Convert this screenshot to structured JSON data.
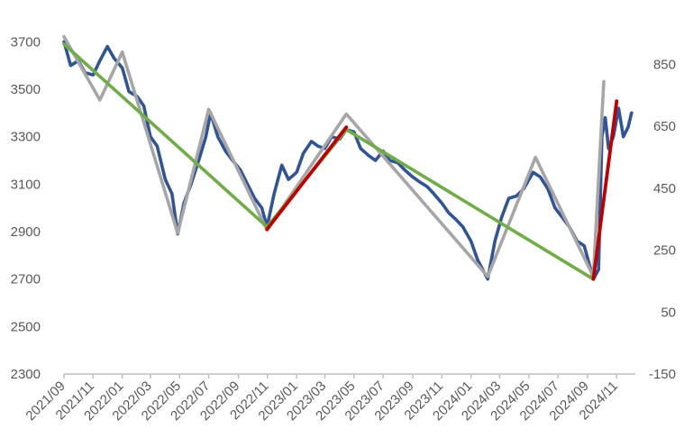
{
  "chart_data": {
    "type": "line",
    "title": "",
    "xlabel": "",
    "ylabel": "",
    "x_ticks": [
      "2021/09",
      "2021/11",
      "2022/01",
      "2022/03",
      "2022/05",
      "2022/07",
      "2022/09",
      "2022/11",
      "2023/01",
      "2023/03",
      "2023/05",
      "2023/07",
      "2023/09",
      "2023/11",
      "2024/01",
      "2024/03",
      "2024/05",
      "2024/07",
      "2024/09",
      "2024/11"
    ],
    "y_left": {
      "ticks": [
        2300,
        2500,
        2700,
        2900,
        3100,
        3300,
        3500,
        3700
      ],
      "ylim": [
        2300,
        3800
      ]
    },
    "y_right": {
      "ticks": [
        -150,
        50,
        250,
        450,
        650,
        850
      ],
      "ylim": [
        -150,
        1000
      ]
    },
    "grid": false,
    "legend": "none",
    "colors": {
      "index": "#2f5597",
      "trend_down": "#70ad47",
      "trend_up": "#c00000",
      "zigzag": "#a6a6a6"
    },
    "series": [
      {
        "axis": "left",
        "x": [
          "2021-09-01",
          "2021-09-15",
          "2021-10-01",
          "2021-10-15",
          "2021-11-01",
          "2021-11-15",
          "2021-12-01",
          "2021-12-15",
          "2022-01-01",
          "2022-01-15",
          "2022-02-01",
          "2022-02-15",
          "2022-03-01",
          "2022-03-15",
          "2022-04-01",
          "2022-04-15",
          "2022-04-27",
          "2022-05-10",
          "2022-05-25",
          "2022-06-10",
          "2022-06-25",
          "2022-07-05",
          "2022-07-20",
          "2022-08-05",
          "2022-08-20",
          "2022-09-05",
          "2022-09-20",
          "2022-10-05",
          "2022-10-20",
          "2022-10-31",
          "2022-11-15",
          "2022-12-01",
          "2022-12-15",
          "2023-01-01",
          "2023-01-15",
          "2023-02-01",
          "2023-02-15",
          "2023-03-01",
          "2023-03-15",
          "2023-04-01",
          "2023-04-15",
          "2023-05-01",
          "2023-05-15",
          "2023-06-01",
          "2023-06-15",
          "2023-07-01",
          "2023-07-15",
          "2023-08-01",
          "2023-08-15",
          "2023-09-01",
          "2023-09-15",
          "2023-10-01",
          "2023-10-15",
          "2023-11-01",
          "2023-11-15",
          "2023-12-01",
          "2023-12-15",
          "2024-01-01",
          "2024-01-15",
          "2024-02-05",
          "2024-02-20",
          "2024-03-05",
          "2024-03-20",
          "2024-04-05",
          "2024-04-20",
          "2024-05-10",
          "2024-05-25",
          "2024-06-10",
          "2024-06-25",
          "2024-07-10",
          "2024-07-25",
          "2024-08-10",
          "2024-08-25",
          "2024-09-13",
          "2024-09-24",
          "2024-10-01",
          "2024-10-08",
          "2024-10-15",
          "2024-10-25",
          "2024-11-05",
          "2024-11-15",
          "2024-11-25",
          "2024-12-02"
        ],
        "values": [
          3700,
          3600,
          3620,
          3570,
          3560,
          3620,
          3680,
          3630,
          3590,
          3490,
          3470,
          3430,
          3300,
          3260,
          3120,
          3060,
          2890,
          3020,
          3100,
          3200,
          3300,
          3400,
          3300,
          3240,
          3200,
          3160,
          3100,
          3040,
          3000,
          2920,
          3060,
          3180,
          3120,
          3150,
          3230,
          3280,
          3260,
          3250,
          3300,
          3290,
          3330,
          3320,
          3250,
          3220,
          3200,
          3240,
          3200,
          3190,
          3160,
          3130,
          3110,
          3090,
          3060,
          3020,
          2980,
          2950,
          2920,
          2860,
          2780,
          2700,
          2860,
          2960,
          3040,
          3050,
          3080,
          3150,
          3130,
          3080,
          3000,
          2960,
          2920,
          2860,
          2840,
          2700,
          2740,
          3300,
          3380,
          3250,
          3300,
          3420,
          3300,
          3340,
          3400
        ]
      },
      {
        "axis": "right",
        "x": [
          "2021-09-01",
          "2021-11-15",
          "2022-01-01",
          "2022-04-27",
          "2022-07-01",
          "2022-10-31",
          "2023-04-15",
          "2024-02-05",
          "2024-05-15",
          "2024-09-13",
          "2024-10-05"
        ],
        "values": [
          940,
          735,
          890,
          305,
          705,
          315,
          690,
          165,
          550,
          165,
          795
        ]
      },
      {
        "axis": "left",
        "x": [
          "2021-09-01",
          "2022-10-31",
          "2023-04-15",
          "2024-09-13"
        ],
        "values": [
          3690,
          2920,
          3330,
          2700
        ]
      },
      {
        "axis": "left",
        "x": [
          "2022-10-31",
          "2023-04-15"
        ],
        "values": [
          2910,
          3340
        ]
      },
      {
        "axis": "left",
        "x": [
          "2024-09-13",
          "2024-11-01"
        ],
        "values": [
          2700,
          3450
        ]
      }
    ]
  }
}
